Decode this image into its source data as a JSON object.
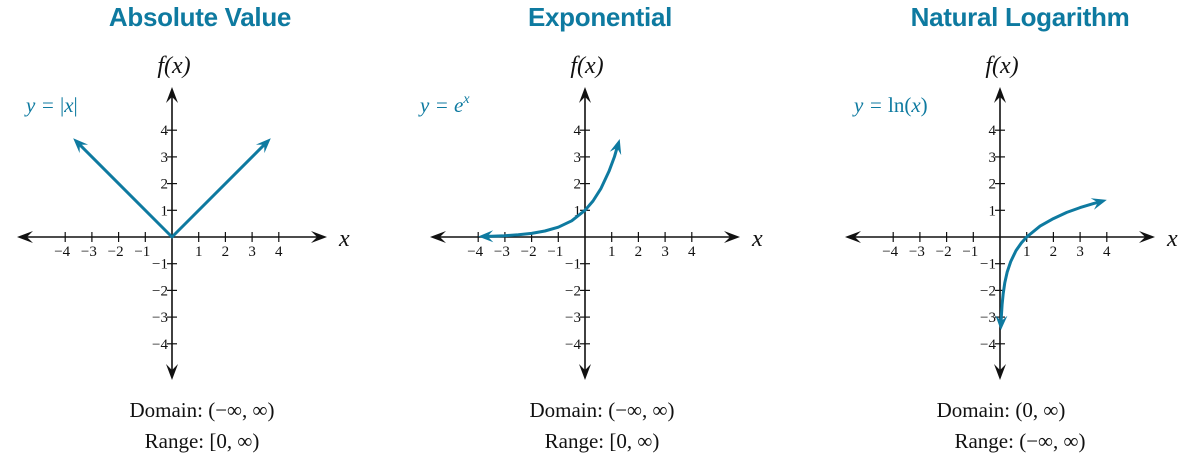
{
  "chart_data": [
    {
      "type": "line",
      "title": "Absolute Value",
      "xlabel": "x",
      "ylabel": "f(x)",
      "function_label": {
        "prefix": "y = ",
        "body": "|x|",
        "sup": ""
      },
      "x_ticks": [
        "−4",
        "−3",
        "−2",
        "−1",
        "1",
        "2",
        "3",
        "4"
      ],
      "y_ticks": [
        "4",
        "3",
        "2",
        "1",
        "−1",
        "−2",
        "−3",
        "−4"
      ],
      "xlim": [
        -5,
        5
      ],
      "ylim": [
        -5,
        4.5
      ],
      "series": [
        {
          "x": [
            -3.7,
            0,
            3.7
          ],
          "y": [
            3.7,
            0,
            3.7
          ],
          "arrow_start": true,
          "arrow_end": true
        }
      ],
      "domain": "Domain: (−∞, ∞)",
      "range": "Range: [0, ∞)",
      "color": "#0e7aa0"
    },
    {
      "type": "line",
      "title": "Exponential",
      "xlabel": "x",
      "ylabel": "f(x)",
      "function_label": {
        "prefix": "y = ",
        "body": "e",
        "sup": "x"
      },
      "x_ticks": [
        "−4",
        "−3",
        "−2",
        "−1",
        "1",
        "2",
        "3",
        "4"
      ],
      "y_ticks": [
        "4",
        "3",
        "2",
        "1",
        "−1",
        "−2",
        "−3",
        "−4"
      ],
      "xlim": [
        -5,
        5
      ],
      "ylim": [
        -5,
        4.5
      ],
      "series": [
        {
          "x": [
            -4,
            -3.5,
            -3,
            -2.5,
            -2,
            -1.5,
            -1,
            -0.5,
            0,
            0.3,
            0.6,
            0.9,
            1.1,
            1.3
          ],
          "y": [
            0.018,
            0.03,
            0.05,
            0.082,
            0.135,
            0.223,
            0.368,
            0.607,
            1,
            1.35,
            1.82,
            2.46,
            3.0,
            3.67
          ],
          "arrow_start": true,
          "arrow_end": true
        }
      ],
      "domain": "Domain: (−∞, ∞)",
      "range": "Range: [0, ∞)",
      "color": "#0e7aa0"
    },
    {
      "type": "line",
      "title": "Natural Logarithm",
      "xlabel": "x",
      "ylabel": "f(x)",
      "function_label": {
        "prefix": "y = ",
        "body": "ln(x)",
        "sup": ""
      },
      "x_ticks": [
        "−4",
        "−3",
        "−2",
        "−1",
        "1",
        "2",
        "3",
        "4"
      ],
      "y_ticks": [
        "4",
        "3",
        "2",
        "1",
        "−1",
        "−2",
        "−3",
        "−4"
      ],
      "xlim": [
        -5,
        5
      ],
      "ylim": [
        -5,
        4.5
      ],
      "series": [
        {
          "x": [
            0.03,
            0.05,
            0.08,
            0.12,
            0.18,
            0.27,
            0.4,
            0.6,
            0.8,
            1,
            1.5,
            2,
            2.5,
            3,
            3.5,
            4
          ],
          "y": [
            -3.5,
            -3.0,
            -2.53,
            -2.12,
            -1.71,
            -1.31,
            -0.92,
            -0.51,
            -0.22,
            0,
            0.41,
            0.69,
            0.92,
            1.1,
            1.25,
            1.39
          ],
          "arrow_start": true,
          "arrow_end": true
        }
      ],
      "domain": "Domain: (0, ∞)",
      "range": "Range: (−∞, ∞)",
      "color": "#0e7aa0"
    }
  ]
}
